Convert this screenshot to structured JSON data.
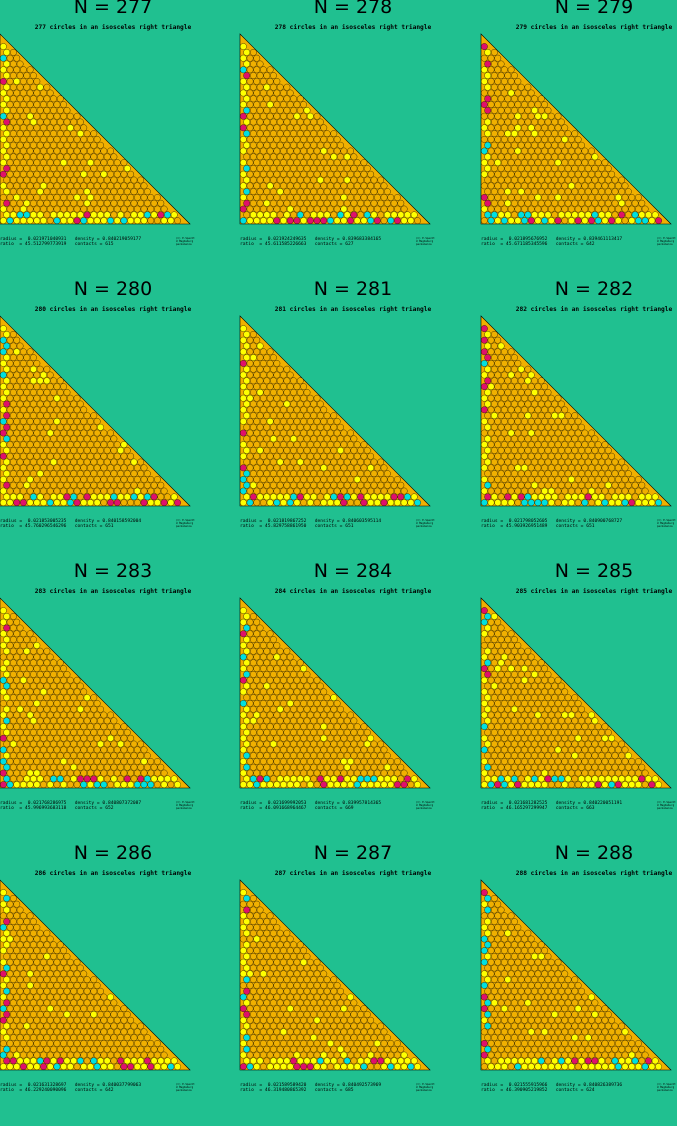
{
  "panels": [
    {
      "title": "N = 277",
      "subtitle": "277 circles in an isosceles right triangle",
      "radius_label": "radius",
      "radius": "0.021971040931",
      "density_label": "density",
      "density": "0.840219059177",
      "ratio_label": "ratio",
      "ratio": "45.512799773919",
      "contacts_label": "contacts",
      "contacts": "615"
    },
    {
      "title": "N = 278",
      "subtitle": "278 circles in an isosceles right triangle",
      "radius_label": "radius",
      "radius": "0.021924249635",
      "density_label": "density",
      "density": "0.839683384165",
      "ratio_label": "ratio",
      "ratio": "45.611585226663",
      "contacts_label": "contacts",
      "contacts": "627"
    },
    {
      "title": "N = 279",
      "subtitle": "279 circles in an isosceles right triangle",
      "radius_label": "radius",
      "radius": "0.021895676952",
      "density_label": "density",
      "density": "0.839461113417",
      "ratio_label": "ratio",
      "ratio": "45.671185345596",
      "contacts_label": "contacts",
      "contacts": "642"
    },
    {
      "title": "N = 280",
      "subtitle": "280 circles in an isosceles right triangle",
      "radius_label": "radius",
      "radius": "0.021853005235",
      "density_label": "density",
      "density": "0.840158592004",
      "ratio_label": "ratio",
      "ratio": "45.760296546296",
      "contacts_label": "contacts",
      "contacts": "651"
    },
    {
      "title": "N = 281",
      "subtitle": "281 circles in an isosceles right triangle",
      "radius_label": "radius",
      "radius": "0.021819867252",
      "density_label": "density",
      "density": "0.840603595114",
      "ratio_label": "ratio",
      "ratio": "45.829758861950",
      "contacts_label": "contacts",
      "contacts": "651"
    },
    {
      "title": "N = 282",
      "subtitle": "282 circles in an isosceles right triangle",
      "radius_label": "radius",
      "radius": "0.021798052605",
      "density_label": "density",
      "density": "0.840900768727",
      "ratio_label": "ratio",
      "ratio": "45.903926951489",
      "contacts_label": "contacts",
      "contacts": "651"
    },
    {
      "title": "N = 283",
      "subtitle": "283 circles in an isosceles right triangle",
      "radius_label": "radius",
      "radius": "0.021768286975",
      "density_label": "density",
      "density": "0.840807372087",
      "ratio_label": "ratio",
      "ratio": "45.996993683118",
      "contacts_label": "contacts",
      "contacts": "652"
    },
    {
      "title": "N = 284",
      "subtitle": "284 circles in an isosceles right triangle",
      "radius_label": "radius",
      "radius": "0.021699992053",
      "density_label": "density",
      "density": "0.839957814365",
      "ratio_label": "ratio",
      "ratio": "46.091668964467",
      "contacts_label": "contacts",
      "contacts": "669"
    },
    {
      "title": "N = 285",
      "subtitle": "285 circles in an isosceles right triangle",
      "radius_label": "radius",
      "radius": "0.021681282525",
      "density_label": "density",
      "density": "0.840220051191",
      "ratio_label": "ratio",
      "ratio": "46.165297299947",
      "contacts_label": "contacts",
      "contacts": "663"
    },
    {
      "title": "N = 286",
      "subtitle": "286 circles in an isosceles right triangle",
      "radius_label": "radius",
      "radius": "0.021631328697",
      "density_label": "density",
      "density": "0.840037799063",
      "ratio_label": "ratio",
      "ratio": "46.229240090096",
      "contacts_label": "contacts",
      "contacts": "642"
    },
    {
      "title": "N = 287",
      "subtitle": "287 circles in an isosceles right triangle",
      "radius_label": "radius",
      "radius": "0.021589589420",
      "density_label": "density",
      "density": "0.840492573969",
      "ratio_label": "ratio",
      "ratio": "46.319480865392",
      "contacts_label": "contacts",
      "contacts": "685"
    },
    {
      "title": "N = 288",
      "subtitle": "288 circles in an isosceles right triangle",
      "radius_label": "radius",
      "radius": "0.021555915966",
      "density_label": "density",
      "density": "0.840826389736",
      "ratio_label": "ratio",
      "ratio": "46.390905219852",
      "contacts_label": "contacts",
      "contacts": "624"
    }
  ],
  "credit": {
    "line1": "(C) E.Specht",
    "line2": "U Magdeburg",
    "line3": "packomania"
  },
  "colors": {
    "background": "#20c090",
    "triangle_fill": "#f0b000",
    "circle_orange": "#f0b000",
    "circle_yellow": "#ffff00",
    "circle_cyan": "#00e0e0",
    "circle_magenta": "#e0106a"
  }
}
